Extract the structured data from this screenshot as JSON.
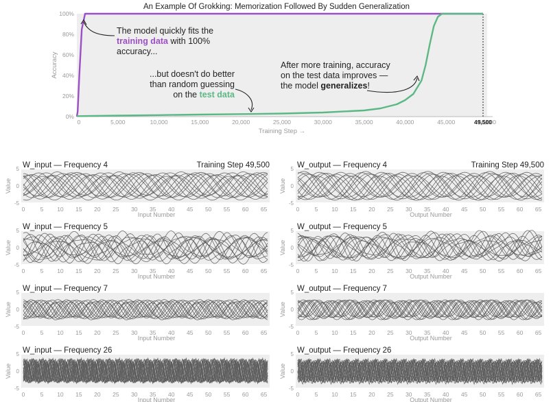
{
  "chart_data": [
    {
      "type": "line",
      "title": "An Example Of Grokking: Memorization Followed By Sudden Generalization",
      "xlabel": "Training Step →",
      "ylabel": "Accuracy",
      "xlim": [
        0,
        50000
      ],
      "ylim": [
        0,
        100
      ],
      "x_ticks": [
        "0",
        "5,000",
        "10,000",
        "15,000",
        "20,000",
        "25,000",
        "30,000",
        "35,000",
        "40,000",
        "45,000",
        "50,000"
      ],
      "y_ticks": [
        "0%",
        "20%",
        "40%",
        "60%",
        "80%",
        "100%"
      ],
      "current_step_label": "49,500",
      "current_step": 49500,
      "grid": false,
      "series": [
        {
          "name": "training data",
          "color": "#9b4fc4",
          "x": [
            0,
            100,
            300,
            600,
            1000,
            2000,
            5000,
            10000,
            20000,
            30000,
            40000,
            49500
          ],
          "y": [
            0,
            5,
            40,
            85,
            100,
            100,
            100,
            100,
            100,
            100,
            100,
            100
          ]
        },
        {
          "name": "test data",
          "color": "#5bb884",
          "x": [
            0,
            5000,
            10000,
            15000,
            20000,
            25000,
            30000,
            35000,
            37000,
            39000,
            40000,
            41000,
            42000,
            42500,
            43000,
            43500,
            44000,
            44500,
            45000,
            47000,
            49500
          ],
          "y": [
            0.5,
            1,
            1.5,
            2,
            2.5,
            3,
            4,
            6,
            8,
            12,
            16,
            22,
            35,
            50,
            70,
            88,
            97,
            100,
            100,
            100,
            100
          ]
        }
      ],
      "annotations": [
        {
          "lines": [
            [
              "The model quickly fits the",
              ""
            ],
            [
              "",
              "training data",
              " with 100%"
            ],
            [
              "accuracy...",
              ""
            ]
          ]
        },
        {
          "lines": [
            [
              "...but doesn't do better",
              ""
            ],
            [
              "than random guessing",
              ""
            ],
            [
              "on the ",
              "test data",
              ""
            ]
          ]
        },
        {
          "lines": [
            [
              "After more training, accuracy",
              ""
            ],
            [
              "on the test data improves —",
              ""
            ],
            [
              "the model ",
              "generalizes",
              "!"
            ]
          ]
        }
      ]
    },
    {
      "type": "line",
      "title": "W_input — Frequency 4",
      "step_label": "Training Step 49,500",
      "xlabel": "Input Number",
      "ylabel": "Value",
      "frequency": 4,
      "ylim": [
        -5,
        5
      ],
      "xlim": [
        0,
        66
      ],
      "x_ticks": [
        "0",
        "5",
        "10",
        "15",
        "20",
        "25",
        "30",
        "35",
        "40",
        "45",
        "50",
        "55",
        "60",
        "65"
      ],
      "y_ticks": [
        "5",
        "0",
        "-5"
      ]
    },
    {
      "type": "line",
      "title": "W_output — Frequency 4",
      "step_label": "Training Step 49,500",
      "xlabel": "Output Number",
      "ylabel": "Value",
      "frequency": 4,
      "ylim": [
        -5,
        5
      ],
      "xlim": [
        0,
        66
      ],
      "x_ticks": [
        "0",
        "5",
        "10",
        "15",
        "20",
        "25",
        "30",
        "35",
        "40",
        "45",
        "50",
        "55",
        "60",
        "65"
      ],
      "y_ticks": [
        "5",
        "0",
        "-5"
      ]
    },
    {
      "type": "line",
      "title": "W_input — Frequency 5",
      "xlabel": "Input Number",
      "ylabel": "Value",
      "frequency": 5,
      "ylim": [
        -5,
        5
      ],
      "xlim": [
        0,
        66
      ],
      "x_ticks": [
        "0",
        "5",
        "10",
        "15",
        "20",
        "25",
        "30",
        "35",
        "40",
        "45",
        "50",
        "55",
        "60",
        "65"
      ],
      "y_ticks": [
        "5",
        "0",
        "-5"
      ]
    },
    {
      "type": "line",
      "title": "W_output — Frequency 5",
      "xlabel": "Output Number",
      "ylabel": "Value",
      "frequency": 5,
      "ylim": [
        -5,
        5
      ],
      "xlim": [
        0,
        66
      ],
      "x_ticks": [
        "0",
        "5",
        "10",
        "15",
        "20",
        "25",
        "30",
        "35",
        "40",
        "45",
        "50",
        "55",
        "60",
        "65"
      ],
      "y_ticks": [
        "5",
        "0",
        "-5"
      ]
    },
    {
      "type": "line",
      "title": "W_input — Frequency 7",
      "xlabel": "Input Number",
      "ylabel": "Value",
      "frequency": 7,
      "ylim": [
        -5,
        5
      ],
      "xlim": [
        0,
        66
      ],
      "x_ticks": [
        "0",
        "5",
        "10",
        "15",
        "20",
        "25",
        "30",
        "35",
        "40",
        "45",
        "50",
        "55",
        "60",
        "65"
      ],
      "y_ticks": [
        "5",
        "0",
        "-5"
      ]
    },
    {
      "type": "line",
      "title": "W_output — Frequency 7",
      "xlabel": "Output Number",
      "ylabel": "Value",
      "frequency": 7,
      "ylim": [
        -5,
        5
      ],
      "xlim": [
        0,
        66
      ],
      "x_ticks": [
        "0",
        "5",
        "10",
        "15",
        "20",
        "25",
        "30",
        "35",
        "40",
        "45",
        "50",
        "55",
        "60",
        "65"
      ],
      "y_ticks": [
        "5",
        "0",
        "-5"
      ]
    },
    {
      "type": "line",
      "title": "W_input — Frequency 26",
      "xlabel": "Input Number",
      "ylabel": "Value",
      "frequency": 26,
      "ylim": [
        -5,
        5
      ],
      "xlim": [
        0,
        66
      ],
      "x_ticks": [
        "0",
        "5",
        "10",
        "15",
        "20",
        "25",
        "30",
        "35",
        "40",
        "45",
        "50",
        "55",
        "60",
        "65"
      ],
      "y_ticks": [
        "5",
        "0",
        "-5"
      ]
    },
    {
      "type": "line",
      "title": "W_output — Frequency 26",
      "xlabel": "Output Number",
      "ylabel": "Value",
      "frequency": 26,
      "ylim": [
        -5,
        5
      ],
      "xlim": [
        0,
        66
      ],
      "x_ticks": [
        "0",
        "5",
        "10",
        "15",
        "20",
        "25",
        "30",
        "35",
        "40",
        "45",
        "50",
        "55",
        "60",
        "65"
      ],
      "y_ticks": [
        "5",
        "0",
        "-5"
      ]
    }
  ],
  "colors": {
    "train": "#9b4fc4",
    "test": "#5bb884",
    "panel_bg": "#eeeeee",
    "wave": "#555555"
  }
}
